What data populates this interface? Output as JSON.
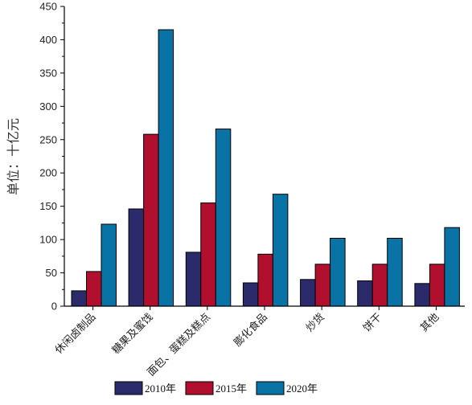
{
  "chart_data": {
    "type": "bar",
    "title": "",
    "xlabel": "",
    "ylabel": "单位：十亿元",
    "ylim": [
      0,
      450
    ],
    "yticks": [
      0,
      50,
      100,
      150,
      200,
      250,
      300,
      350,
      400,
      450
    ],
    "categories": [
      "休闲卤制品",
      "糖果及蜜饯",
      "面包、蛋糕及糕点",
      "膨化食品",
      "炒货",
      "饼干",
      "其他"
    ],
    "series": [
      {
        "name": "2010年",
        "color": "#2b2a6b",
        "values": [
          23,
          146,
          81,
          35,
          40,
          38,
          34
        ]
      },
      {
        "name": "2015年",
        "color": "#b0102e",
        "values": [
          52,
          258,
          155,
          78,
          63,
          63,
          63
        ]
      },
      {
        "name": "2020年",
        "color": "#0a73a6",
        "values": [
          123,
          415,
          266,
          168,
          102,
          102,
          118
        ]
      }
    ],
    "grid": false,
    "legend": "bottom"
  }
}
